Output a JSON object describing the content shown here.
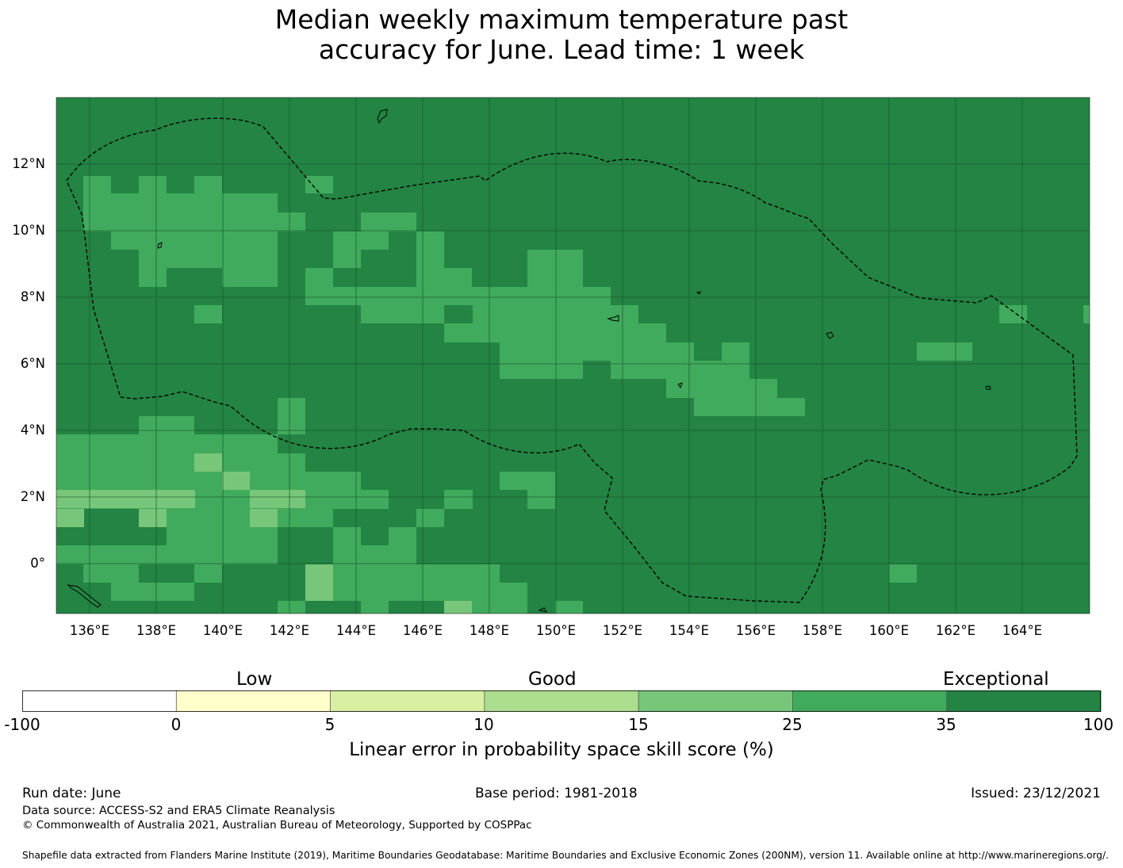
{
  "title": {
    "line1": "Median weekly maximum temperature past",
    "line2": "accuracy for June. Lead time: 1 week"
  },
  "map": {
    "lon_ticks": [
      "136°E",
      "138°E",
      "140°E",
      "142°E",
      "144°E",
      "146°E",
      "148°E",
      "150°E",
      "152°E",
      "154°E",
      "156°E",
      "158°E",
      "160°E",
      "162°E",
      "164°E"
    ],
    "lat_ticks": [
      "12°N",
      "10°N",
      "8°N",
      "6°N",
      "4°N",
      "2°N",
      "0°"
    ],
    "lon_range": [
      135,
      166
    ],
    "lat_range": [
      -1.5,
      14
    ],
    "background_color": "#238443",
    "grid_color": "#17532c"
  },
  "colorbar": {
    "categories": [
      "Low",
      "Good",
      "Exceptional"
    ],
    "ticks": [
      "-100",
      "0",
      "5",
      "10",
      "15",
      "25",
      "35",
      "100"
    ],
    "colors": [
      "#ffffff",
      "#ffffcc",
      "#d9f0a3",
      "#addd8e",
      "#78c679",
      "#41ab5d",
      "#238443"
    ],
    "label": "Linear error in probability space skill score (%)"
  },
  "footer": {
    "run_date": "Run date: June",
    "base_period": "Base period: 1981-2018",
    "issued": "Issued: 23/12/2021",
    "data_source": "Data source: ACCESS-S2 and ERA5 Climate Reanalysis",
    "copyright": "© Commonwealth of Australia 2021, Australian Bureau of Meteorology, Supported by COSPPac",
    "shapefile": "Shapefile data extracted from Flanders Marine Institute (2019), Maritime Boundaries Geodatabase: Maritime Boundaries and Exclusive Economic Zones (200NM), version 11. Available online at http://www.marineregions.org/."
  }
}
